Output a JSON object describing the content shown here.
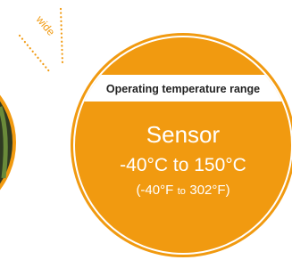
{
  "tag": "wide",
  "panel": {
    "heading": "Operating temperature range",
    "label": "Sensor",
    "celsius": "-40°C to 150°C",
    "fahrenheit": [
      "(-40°F",
      "to",
      "302°F)"
    ]
  }
}
